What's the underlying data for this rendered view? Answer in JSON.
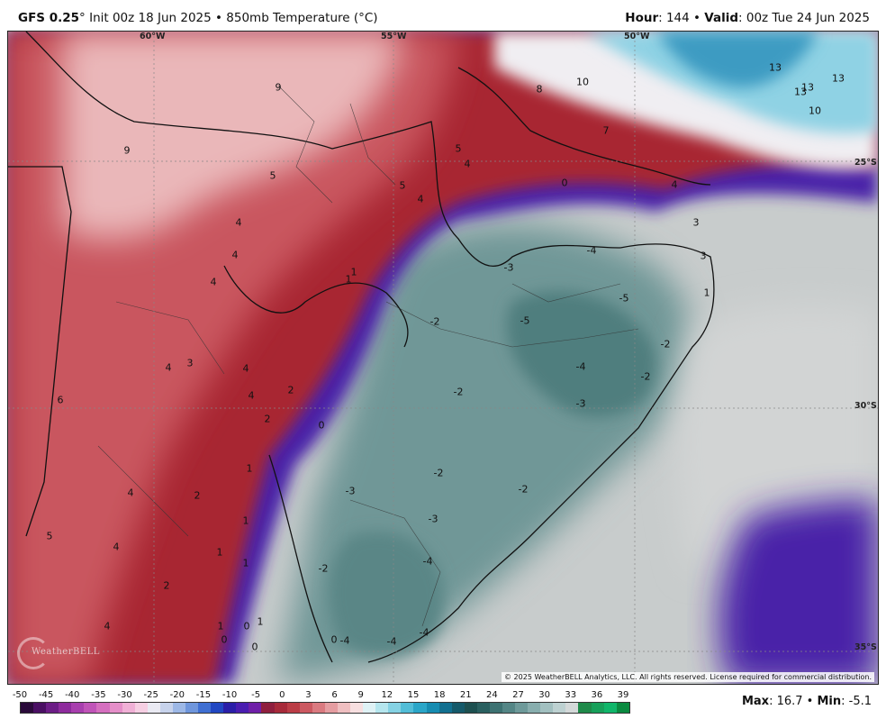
{
  "header": {
    "model": "GFS 0.25",
    "deg": "°",
    "init": " Init 00z 18 Jun 2025 • 850mb Temperature (°C)",
    "hour_label": "Hour",
    "hour_value": ": 144 • ",
    "valid_label": "Valid",
    "valid_value": ": 00z Tue 24 Jun 2025"
  },
  "map": {
    "longitude_labels": [
      "60°W",
      "55°W",
      "50°W"
    ],
    "latitude_labels": [
      "25°S",
      "30°S",
      "35°S"
    ],
    "copyright": "© 2025 WeatherBELL Analytics, LLC. All rights reserved. License required for commercial distribution.",
    "logo_text": "WeatherBELL",
    "temperature_labels": [
      "9",
      "8",
      "10",
      "7",
      "13",
      "13",
      "13",
      "13",
      "10",
      "5",
      "4",
      "9",
      "5",
      "5",
      "4",
      "0",
      "4",
      "4",
      "3",
      "4",
      "3",
      "1",
      "1",
      "4",
      "-4",
      "-3",
      "-5",
      "-5",
      "1",
      "-2",
      "-2",
      "-4",
      "-2",
      "4",
      "3",
      "4",
      "4",
      "2",
      "-2",
      "-3",
      "6",
      "2",
      "0",
      "1",
      "-2",
      "-3",
      "-2",
      "1",
      "-3",
      "4",
      "2",
      "1",
      "-2",
      "-4",
      "5",
      "4",
      "1",
      "0",
      "2",
      "1",
      "0",
      "1",
      "0",
      "0",
      "4",
      "-4",
      "-4",
      "-4"
    ]
  },
  "colorbar": {
    "ticks": [
      "-50",
      "-45",
      "-40",
      "-35",
      "-30",
      "-25",
      "-20",
      "-15",
      "-10",
      "-5",
      "0",
      "3",
      "6",
      "9",
      "12",
      "15",
      "18",
      "21",
      "24",
      "27",
      "30",
      "33",
      "36",
      "39"
    ],
    "colors": [
      "#2a0a3a",
      "#4a0f63",
      "#6c1d86",
      "#8e2b9d",
      "#a83fae",
      "#c054b8",
      "#d56fbf",
      "#e58fc9",
      "#f0b0d6",
      "#f6cfe3",
      "#eaeaf3",
      "#c7d3ec",
      "#9db8e6",
      "#6f96dc",
      "#3f6fd2",
      "#2147c2",
      "#2a1ea8",
      "#4a1db0",
      "#6f1fa8",
      "#8f1f3e",
      "#a72a3a",
      "#bb3d46",
      "#cc5961",
      "#da7a80",
      "#e59da1",
      "#efbfc1",
      "#f7dfe0",
      "#dff2f5",
      "#b5e6ee",
      "#85d2e3",
      "#52bdd7",
      "#2aa6c8",
      "#168cb1",
      "#127090",
      "#155a6a",
      "#1d5050",
      "#2a6060",
      "#3d7272",
      "#548686",
      "#6e9a9a",
      "#88aeae",
      "#a2c0c0",
      "#bdd1d1",
      "#d4d9d9",
      "#1f8a4a",
      "#17a05a",
      "#10b66a",
      "#0a8a40"
    ],
    "max_label": "Max",
    "max_value": ": 16.7 • ",
    "min_label": "Min",
    "min_value": ": -5.1"
  }
}
